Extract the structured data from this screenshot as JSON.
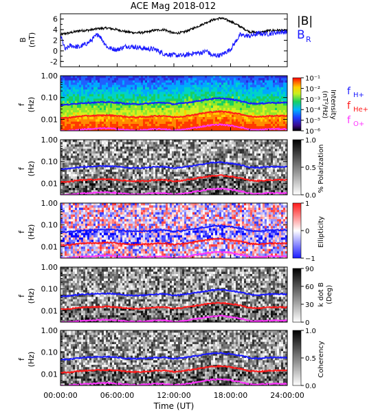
{
  "chart_data": [
    {
      "type": "line",
      "title": "ACE Mag 2018-012",
      "ylabel": "B",
      "yunit": "(nT)",
      "ylim": [
        -3,
        7
      ],
      "yticks": [
        -2,
        0,
        2,
        4,
        6
      ],
      "xlim": [
        0,
        24
      ],
      "grid": false,
      "legend_position": "top-right (right margin)",
      "series": [
        {
          "name": "|B|",
          "color": "#000000",
          "x": [
            0,
            1,
            2,
            3,
            4,
            5,
            6,
            7,
            8,
            9,
            10,
            11,
            12,
            13,
            14,
            15,
            16,
            17,
            18,
            19,
            20,
            21,
            22,
            23,
            24
          ],
          "values": [
            3.1,
            3.4,
            3.8,
            3.9,
            4.2,
            4.3,
            4.0,
            3.6,
            3.4,
            3.5,
            3.9,
            4.0,
            3.3,
            3.5,
            4.2,
            5.0,
            5.8,
            6.2,
            5.6,
            4.6,
            3.6,
            3.4,
            3.8,
            3.9,
            3.8
          ]
        },
        {
          "name": "B",
          "name_subscript": "R",
          "color": "#1a1aff",
          "x": [
            0,
            0.5,
            1,
            2,
            3,
            4,
            5,
            6,
            7,
            8,
            9,
            10,
            11,
            12,
            13,
            14,
            15,
            15.5,
            16,
            17,
            18,
            19,
            20,
            21,
            22,
            23,
            24
          ],
          "values": [
            3.0,
            0.2,
            1.0,
            0.7,
            1.6,
            3.2,
            0.6,
            0.2,
            0.9,
            0.7,
            0.4,
            0.3,
            -0.6,
            -0.8,
            -0.9,
            -0.5,
            -0.3,
            0.0,
            -0.9,
            -0.8,
            0.3,
            3.0,
            2.8,
            3.3,
            3.2,
            3.5,
            3.6
          ]
        }
      ]
    },
    {
      "type": "heatmap",
      "panel": "intensity",
      "ylabel": "f",
      "yunit": "(Hz)",
      "yscale": "log",
      "ylim": [
        0.003,
        1.0
      ],
      "yticks": [
        "1.00",
        "0.10",
        "0.01"
      ],
      "xlim": [
        0,
        24
      ],
      "colorbar": {
        "label": "Intensity",
        "unit": "(nT²/Hz)",
        "scale": "log",
        "ticks": [
          "10⁻¹",
          "10⁻²",
          "10⁻³",
          "10⁻⁴",
          "10⁻⁵",
          "10⁻⁶"
        ],
        "colormap": "rainbow"
      },
      "overlay_legend": [
        {
          "name": "f",
          "subscript": "H+",
          "color": "#1a1aff"
        },
        {
          "name": "f",
          "subscript": "He+",
          "color": "#ff1a1a"
        },
        {
          "name": "f",
          "subscript": "O+",
          "color": "#ff33ff"
        }
      ]
    },
    {
      "type": "heatmap",
      "panel": "polarization",
      "ylabel": "f",
      "yunit": "(Hz)",
      "yscale": "log",
      "ylim": [
        0.003,
        1.0
      ],
      "yticks": [
        "1.00",
        "0.10",
        "0.01"
      ],
      "colorbar": {
        "label": "% Polarization",
        "ticks": [
          "1.0",
          "0.5",
          "0.0"
        ],
        "colormap": "grayscale"
      }
    },
    {
      "type": "heatmap",
      "panel": "ellipticity",
      "ylabel": "f",
      "yunit": "(Hz)",
      "yscale": "log",
      "ylim": [
        0.003,
        1.0
      ],
      "yticks": [
        "1.00",
        "0.10",
        "0.01"
      ],
      "colorbar": {
        "label": "Ellipticity",
        "ticks": [
          "1",
          "0",
          "−1"
        ],
        "colormap": "blue-white-red"
      }
    },
    {
      "type": "heatmap",
      "panel": "kdotb",
      "ylabel": "f",
      "yunit": "(Hz)",
      "yscale": "log",
      "ylim": [
        0.003,
        1.0
      ],
      "yticks": [
        "1.00",
        "0.10",
        "0.01"
      ],
      "colorbar": {
        "label": "k dot B",
        "unit": "(Deg)",
        "ticks": [
          "90",
          "60",
          "30",
          "0"
        ],
        "colormap": "grayscale"
      }
    },
    {
      "type": "heatmap",
      "panel": "coherency",
      "ylabel": "f",
      "yunit": "(Hz)",
      "yscale": "log",
      "ylim": [
        0.003,
        1.0
      ],
      "yticks": [
        "1.00",
        "0.10",
        "0.01"
      ],
      "xlabel": "Time (UT)",
      "xticks": [
        "00:00:00",
        "06:00:00",
        "12:00:00",
        "18:00:00",
        "24:00:00"
      ],
      "colorbar": {
        "label": "Coherency",
        "ticks": [
          "1.0",
          "0.5",
          "0.0"
        ],
        "colormap": "grayscale"
      }
    }
  ],
  "gyrofrequencies": {
    "x": [
      0,
      1,
      2,
      3,
      4,
      5,
      6,
      7,
      8,
      9,
      10,
      11,
      12,
      13,
      14,
      15,
      16,
      17,
      18,
      19,
      20,
      21,
      22,
      23,
      24
    ],
    "H+": [
      0.045,
      0.048,
      0.055,
      0.058,
      0.06,
      0.062,
      0.058,
      0.052,
      0.05,
      0.052,
      0.057,
      0.058,
      0.05,
      0.055,
      0.064,
      0.075,
      0.088,
      0.092,
      0.083,
      0.07,
      0.055,
      0.052,
      0.057,
      0.058,
      0.058
    ],
    "He+": [
      0.0115,
      0.012,
      0.0138,
      0.0145,
      0.015,
      0.0155,
      0.0145,
      0.013,
      0.0125,
      0.013,
      0.0142,
      0.0145,
      0.0125,
      0.0138,
      0.016,
      0.0188,
      0.022,
      0.023,
      0.0208,
      0.0175,
      0.0138,
      0.013,
      0.0142,
      0.0145,
      0.0145
    ],
    "O+": [
      0.0029,
      0.003,
      0.0034,
      0.0036,
      0.0038,
      0.0039,
      0.0036,
      0.0033,
      0.0031,
      0.0033,
      0.0036,
      0.0036,
      0.0031,
      0.0034,
      0.004,
      0.0047,
      0.0055,
      0.0058,
      0.0052,
      0.0044,
      0.0034,
      0.0033,
      0.0036,
      0.0036,
      0.0036
    ]
  }
}
